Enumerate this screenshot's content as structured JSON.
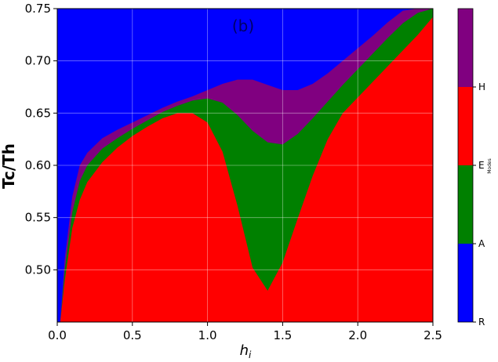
{
  "chart_data": {
    "type": "area",
    "panel_label": "(b)",
    "xlabel": "h_i",
    "ylabel": "Tc/Th",
    "xlim": [
      0.0,
      2.5
    ],
    "ylim": [
      0.45,
      0.75
    ],
    "x_ticks": [
      "0.0",
      "0.5",
      "1.0",
      "1.5",
      "2.0",
      "2.5"
    ],
    "y_ticks": [
      "0.50",
      "0.55",
      "0.60",
      "0.65",
      "0.70",
      "0.75"
    ],
    "grid": true,
    "colorbar": {
      "label": "Modes",
      "ticks": [
        "R",
        "A",
        "E",
        "H"
      ],
      "colors": [
        "#0000ff",
        "#008000",
        "#ff0000",
        "#800080"
      ]
    },
    "x": [
      0.02,
      0.05,
      0.1,
      0.15,
      0.2,
      0.3,
      0.4,
      0.5,
      0.6,
      0.7,
      0.8,
      0.9,
      1.0,
      1.1,
      1.2,
      1.3,
      1.4,
      1.5,
      1.6,
      1.7,
      1.8,
      1.9,
      2.0,
      2.1,
      2.2,
      2.3,
      2.4,
      2.5
    ],
    "series": [
      {
        "name": "E",
        "color": "#ff0000",
        "values": [
          0.45,
          0.49,
          0.54,
          0.567,
          0.584,
          0.603,
          0.617,
          0.628,
          0.637,
          0.645,
          0.65,
          0.65,
          0.641,
          0.613,
          0.561,
          0.502,
          0.48,
          0.507,
          0.549,
          0.59,
          0.625,
          0.65,
          0.665,
          0.68,
          0.695,
          0.71,
          0.725,
          0.742
        ]
      },
      {
        "name": "A",
        "color": "#008000",
        "values": [
          0.45,
          0.5,
          0.555,
          0.585,
          0.6,
          0.616,
          0.626,
          0.635,
          0.643,
          0.651,
          0.657,
          0.662,
          0.664,
          0.66,
          0.648,
          0.633,
          0.622,
          0.62,
          0.63,
          0.645,
          0.661,
          0.677,
          0.692,
          0.707,
          0.722,
          0.736,
          0.746,
          0.75
        ]
      },
      {
        "name": "H",
        "color": "#800080",
        "values": [
          0.45,
          0.51,
          0.57,
          0.6,
          0.612,
          0.626,
          0.634,
          0.641,
          0.648,
          0.655,
          0.661,
          0.666,
          0.672,
          0.678,
          0.682,
          0.682,
          0.677,
          0.672,
          0.672,
          0.678,
          0.688,
          0.7,
          0.712,
          0.724,
          0.737,
          0.748,
          0.75,
          0.75
        ]
      }
    ]
  }
}
